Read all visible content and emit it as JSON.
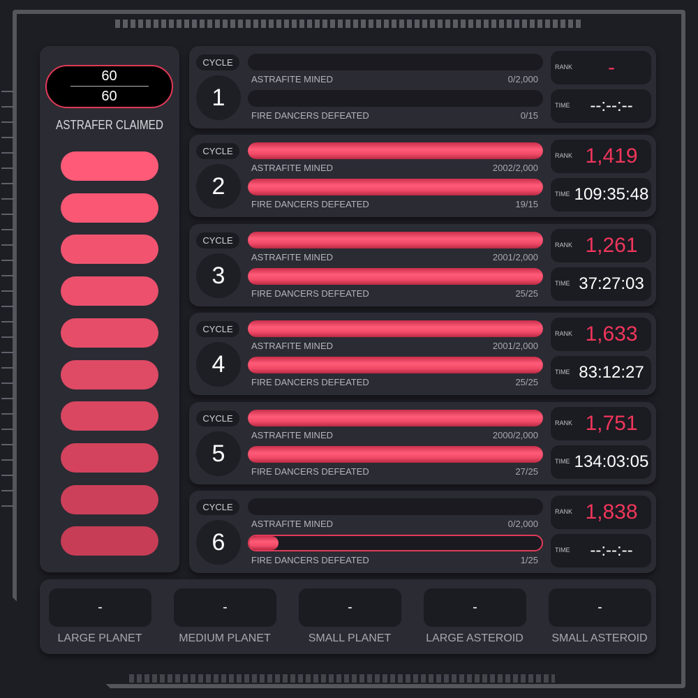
{
  "colors": {
    "accent": "#f0365a",
    "panel": "#2b2b33",
    "well": "#1b1b22"
  },
  "astrafer": {
    "claimed": "60",
    "total": "60",
    "label": "ASTRAFER CLAIMED",
    "pills": 10
  },
  "cycles": [
    {
      "label": "CYCLE",
      "number": "1",
      "mined_label": "ASTRAFITE MINED",
      "mined": "0/2,000",
      "mined_fraction": 0,
      "fire_label": "FIRE DANCERS DEFEATED",
      "fire": "0/15",
      "fire_fraction": 0,
      "rank_label": "RANK",
      "rank": "-",
      "time_label": "TIME",
      "time": "--:--:--"
    },
    {
      "label": "CYCLE",
      "number": "2",
      "mined_label": "ASTRAFITE MINED",
      "mined": "2002/2,000",
      "mined_fraction": 1,
      "fire_label": "FIRE DANCERS DEFEATED",
      "fire": "19/15",
      "fire_fraction": 1,
      "rank_label": "RANK",
      "rank": "1,419",
      "time_label": "TIME",
      "time": "109:35:48"
    },
    {
      "label": "CYCLE",
      "number": "3",
      "mined_label": "ASTRAFITE MINED",
      "mined": "2001/2,000",
      "mined_fraction": 1,
      "fire_label": "FIRE DANCERS DEFEATED",
      "fire": "25/25",
      "fire_fraction": 1,
      "rank_label": "RANK",
      "rank": "1,261",
      "time_label": "TIME",
      "time": "37:27:03"
    },
    {
      "label": "CYCLE",
      "number": "4",
      "mined_label": "ASTRAFITE MINED",
      "mined": "2001/2,000",
      "mined_fraction": 1,
      "fire_label": "FIRE DANCERS DEFEATED",
      "fire": "25/25",
      "fire_fraction": 1,
      "rank_label": "RANK",
      "rank": "1,633",
      "time_label": "TIME",
      "time": "83:12:27"
    },
    {
      "label": "CYCLE",
      "number": "5",
      "mined_label": "ASTRAFITE MINED",
      "mined": "2000/2,000",
      "mined_fraction": 1,
      "fire_label": "FIRE DANCERS DEFEATED",
      "fire": "27/25",
      "fire_fraction": 1,
      "rank_label": "RANK",
      "rank": "1,751",
      "time_label": "TIME",
      "time": "134:03:05"
    },
    {
      "label": "CYCLE",
      "number": "6",
      "mined_label": "ASTRAFITE MINED",
      "mined": "0/2,000",
      "mined_fraction": 0,
      "fire_label": "FIRE DANCERS DEFEATED",
      "fire": "1/25",
      "fire_fraction": 0.04,
      "fire_outlined": true,
      "rank_label": "RANK",
      "rank": "1,838",
      "time_label": "TIME",
      "time": "--:--:--"
    }
  ],
  "resources": [
    {
      "label": "LARGE PLANET",
      "value": "-"
    },
    {
      "label": "MEDIUM PLANET",
      "value": "-"
    },
    {
      "label": "SMALL PLANET",
      "value": "-"
    },
    {
      "label": "LARGE ASTEROID",
      "value": "-"
    },
    {
      "label": "SMALL ASTEROID",
      "value": "-"
    }
  ]
}
